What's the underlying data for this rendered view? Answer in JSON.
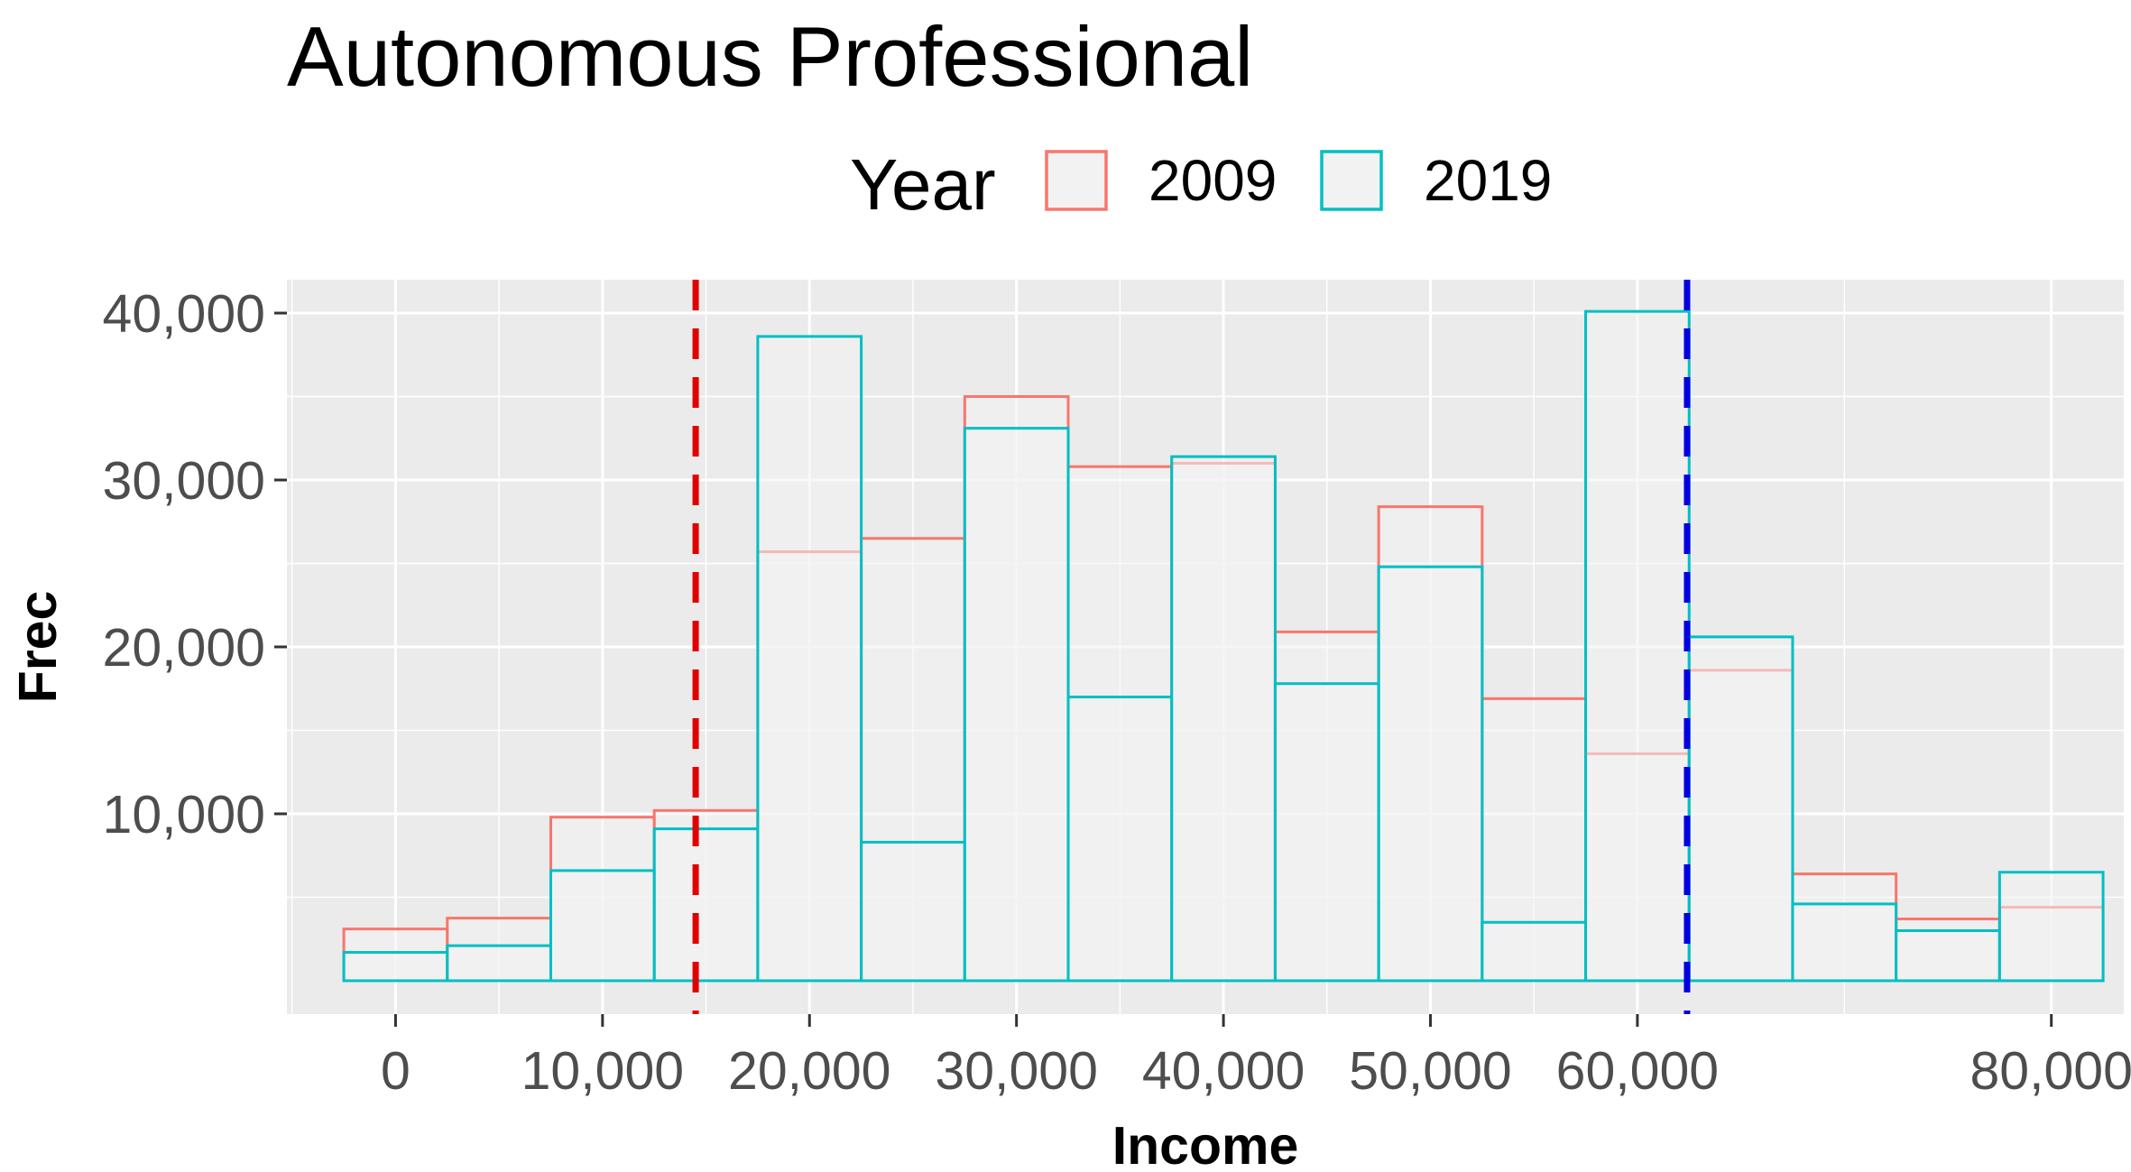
{
  "chart_data": {
    "type": "bar",
    "title": "Autonomous Professional",
    "xlabel": "Income",
    "ylabel": "Frec",
    "xlim": [
      -5250,
      83500
    ],
    "ylim": [
      -2000,
      42000
    ],
    "x_ticks": [
      0,
      10000,
      20000,
      30000,
      40000,
      50000,
      60000,
      80000
    ],
    "x_tick_labels": [
      "0",
      "10,000",
      "20,000",
      "30,000",
      "40,000",
      "50,000",
      "60,000",
      "80,000"
    ],
    "y_ticks": [
      10000,
      20000,
      30000,
      40000
    ],
    "y_tick_labels": [
      "10,000",
      "20,000",
      "30,000",
      "40,000"
    ],
    "grid": true,
    "legend": {
      "title": "Year",
      "position": "top"
    },
    "bin_width": 5000,
    "bins": [
      0,
      5000,
      10000,
      15000,
      20000,
      25000,
      30000,
      35000,
      40000,
      45000,
      50000,
      55000,
      60000,
      65000,
      70000,
      75000,
      80000
    ],
    "series": [
      {
        "name": "2009",
        "color": "#F8766D",
        "values": [
          3100,
          3750,
          9800,
          10200,
          25700,
          26500,
          35000,
          30800,
          31000,
          20900,
          28400,
          16900,
          13600,
          18600,
          6400,
          3700,
          4400
        ]
      },
      {
        "name": "2019",
        "color": "#00BFC4",
        "values": [
          1700,
          2100,
          6600,
          9100,
          38600,
          8300,
          33100,
          17000,
          31400,
          17800,
          24800,
          3500,
          40100,
          20600,
          4600,
          3000,
          6500
        ]
      }
    ],
    "reference_lines": [
      {
        "x": 14500,
        "color": "#E00000",
        "style": "dashed"
      },
      {
        "x": 62400,
        "color": "#0000E0",
        "style": "dashed"
      }
    ],
    "bar_fill": "#F2F2F2",
    "panel_background": "#EBEBEB"
  }
}
